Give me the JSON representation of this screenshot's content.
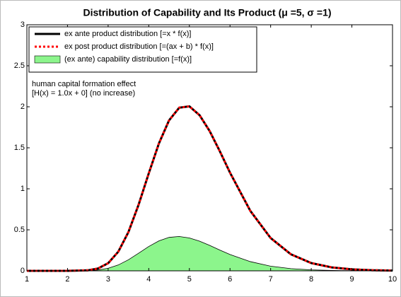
{
  "chart_data": {
    "type": "line",
    "title": "Distribution of Capability and Its Product (μ =5, σ =1)",
    "annotations": [
      "human capital formation effect",
      "[H(x) = 1.0x + 0] (no increase)"
    ],
    "x": [
      1,
      1.5,
      2,
      2.5,
      2.75,
      3,
      3.25,
      3.5,
      3.75,
      4,
      4.25,
      4.5,
      4.75,
      5,
      5.25,
      5.5,
      5.75,
      6,
      6.5,
      7,
      7.5,
      8,
      8.5,
      9,
      9.5,
      10
    ],
    "series": [
      {
        "name": "ex ante product distribution  [=x * f(x)]",
        "color": "#000000",
        "style": "solid",
        "values": [
          0,
          0,
          0.0001,
          0.0061,
          0.0284,
          0.0929,
          0.2333,
          0.473,
          0.806,
          1.188,
          1.553,
          1.835,
          1.989,
          2.005,
          1.898,
          1.703,
          1.457,
          1.197,
          0.731,
          0.4,
          0.201,
          0.0947,
          0.0423,
          0.0182,
          0.0076,
          0.0031
        ]
      },
      {
        "name": "ex post product distribution  [=(ax + b) * f(x)]",
        "color": "#ff0000",
        "style": "dotted",
        "values": [
          0,
          0,
          0.0001,
          0.0061,
          0.0284,
          0.0929,
          0.2333,
          0.473,
          0.806,
          1.188,
          1.553,
          1.835,
          1.989,
          2.005,
          1.898,
          1.703,
          1.457,
          1.197,
          0.731,
          0.4,
          0.201,
          0.0947,
          0.0423,
          0.0182,
          0.0076,
          0.0031
        ]
      },
      {
        "name": "(ex ante) capability distribution  [=f(x)]",
        "color": "#8cf58c",
        "style": "area",
        "values": [
          0,
          0,
          0,
          0.0025,
          0.0103,
          0.031,
          0.0718,
          0.135,
          0.215,
          0.297,
          0.365,
          0.408,
          0.419,
          0.401,
          0.362,
          0.31,
          0.253,
          0.1995,
          0.1125,
          0.0571,
          0.0268,
          0.0118,
          0.005,
          0.002,
          0.0008,
          0.0003
        ]
      }
    ],
    "xlim": [
      1,
      10
    ],
    "xticks": [
      1,
      2,
      3,
      4,
      5,
      6,
      7,
      8,
      9,
      10
    ],
    "ylim": [
      0,
      3
    ],
    "yticks": [
      0,
      0.5,
      1,
      1.5,
      2,
      2.5,
      3
    ],
    "grid": false,
    "legend": "upper left"
  }
}
